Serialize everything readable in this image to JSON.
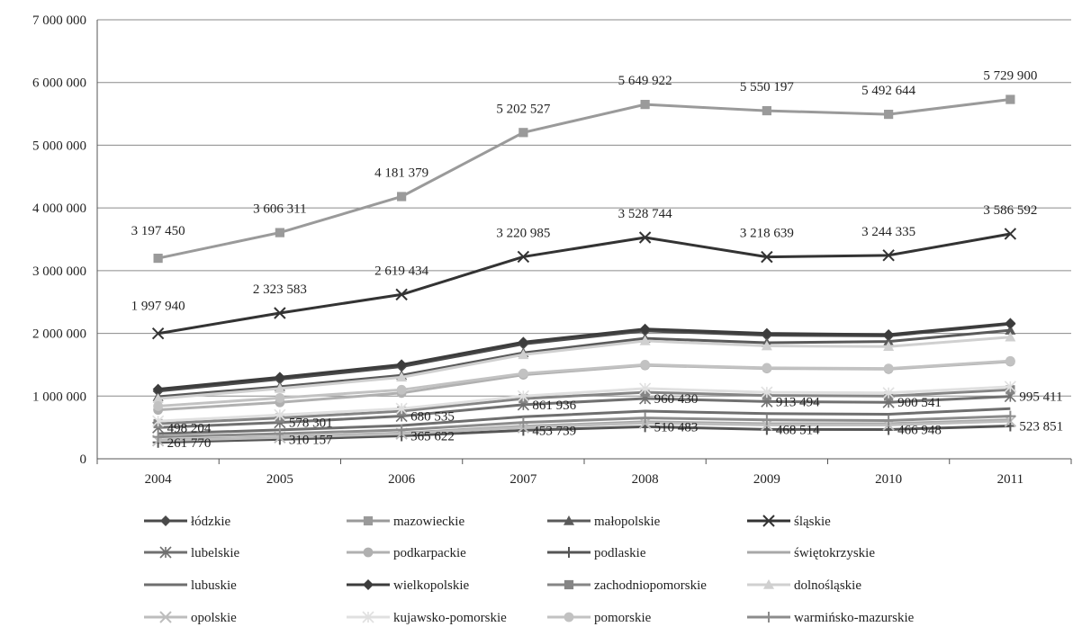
{
  "chart_data": {
    "type": "line",
    "title": "",
    "xlabel": "",
    "ylabel": "",
    "categories": [
      "2004",
      "2005",
      "2006",
      "2007",
      "2008",
      "2009",
      "2010",
      "2011"
    ],
    "ylim": [
      0,
      7000000
    ],
    "yticks": [
      0,
      1000000,
      2000000,
      3000000,
      4000000,
      5000000,
      6000000,
      7000000
    ],
    "ytick_labels": [
      "0",
      "1 000 000",
      "2 000 000",
      "3 000 000",
      "4 000 000",
      "5 000 000",
      "6 000 000",
      "7 000 000"
    ],
    "grid": "horizontal",
    "legend_position": "bottom",
    "series": [
      {
        "name": "łódzkie",
        "marker": "diamond",
        "color": "#4a4a4a",
        "values": [
          1080000,
          1270000,
          1470000,
          1830000,
          2040000,
          1970000,
          1960000,
          2150000
        ]
      },
      {
        "name": "mazowieckie",
        "marker": "square",
        "color": "#9a9a9a",
        "values": [
          3197450,
          3606311,
          4181379,
          5202527,
          5649922,
          5550197,
          5492644,
          5729900
        ],
        "labels": [
          "3 197 450",
          "3 606 311",
          "4 181 379",
          "5 202 527",
          "5 649 922",
          "5 550 197",
          "5 492 644",
          "5 729 900"
        ]
      },
      {
        "name": "małopolskie",
        "marker": "triangle",
        "color": "#5a5a5a",
        "values": [
          990000,
          1150000,
          1330000,
          1690000,
          1920000,
          1850000,
          1870000,
          2050000
        ]
      },
      {
        "name": "śląskie",
        "marker": "x",
        "color": "#333333",
        "values": [
          1997940,
          2323583,
          2619434,
          3220985,
          3528744,
          3218639,
          3244335,
          3586592
        ],
        "labels": [
          "1 997 940",
          "2 323 583",
          "2 619 434",
          "3 220 985",
          "3 528 744",
          "3 218 639",
          "3 244 335",
          "3 586 592"
        ]
      },
      {
        "name": "lubelskie",
        "marker": "asterisk",
        "color": "#707070",
        "values": [
          498204,
          578301,
          680535,
          861936,
          960430,
          913494,
          900541,
          995411
        ],
        "labels": [
          "498 204",
          "578 301",
          "680 535",
          "861 936",
          "960 430",
          "913 494",
          "900 541",
          "995 411"
        ]
      },
      {
        "name": "podkarpackie",
        "marker": "circle",
        "color": "#b0b0b0",
        "values": [
          780000,
          900000,
          1050000,
          1340000,
          1490000,
          1440000,
          1430000,
          1550000
        ]
      },
      {
        "name": "podlaskie",
        "marker": "plus",
        "color": "#555555",
        "values": [
          261770,
          310157,
          365622,
          453739,
          510483,
          468514,
          466948,
          523851
        ],
        "labels": [
          "261 770",
          "310 157",
          "365 622",
          "453 739",
          "510 483",
          "468 514",
          "466 948",
          "523 851"
        ]
      },
      {
        "name": "świętokrzyskie",
        "marker": "none",
        "color": "#a8a8a8",
        "values": [
          300000,
          350000,
          410000,
          520000,
          590000,
          560000,
          560000,
          620000
        ]
      },
      {
        "name": "lubuskie",
        "marker": "none",
        "color": "#6e6e6e",
        "values": [
          400000,
          460000,
          530000,
          670000,
          760000,
          720000,
          710000,
          800000
        ]
      },
      {
        "name": "wielkopolskie",
        "marker": "diamond",
        "color": "#3c3c3c",
        "values": [
          1110000,
          1300000,
          1500000,
          1860000,
          2070000,
          2000000,
          1980000,
          2160000
        ]
      },
      {
        "name": "zachodniopomorskie",
        "marker": "square",
        "color": "#858585",
        "values": [
          560000,
          650000,
          760000,
          960000,
          1060000,
          1010000,
          1000000,
          1100000
        ]
      },
      {
        "name": "dolnośląskie",
        "marker": "triangle",
        "color": "#d0d0d0",
        "values": [
          960000,
          1120000,
          1300000,
          1660000,
          1880000,
          1800000,
          1790000,
          1940000
        ]
      },
      {
        "name": "opolskie",
        "marker": "x",
        "color": "#bdbdbd",
        "values": [
          290000,
          340000,
          400000,
          500000,
          570000,
          540000,
          540000,
          600000
        ]
      },
      {
        "name": "kujawsko-pomorskie",
        "marker": "asterisk",
        "color": "#e0e0e0",
        "values": [
          600000,
          700000,
          800000,
          1000000,
          1120000,
          1060000,
          1050000,
          1150000
        ]
      },
      {
        "name": "pomorskie",
        "marker": "circle",
        "color": "#c2c2c2",
        "values": [
          840000,
          970000,
          1100000,
          1360000,
          1500000,
          1450000,
          1440000,
          1560000
        ]
      },
      {
        "name": "warmińsko-mazurskie",
        "marker": "plus",
        "color": "#8c8c8c",
        "values": [
          350000,
          400000,
          460000,
          580000,
          650000,
          620000,
          610000,
          680000
        ]
      }
    ]
  }
}
